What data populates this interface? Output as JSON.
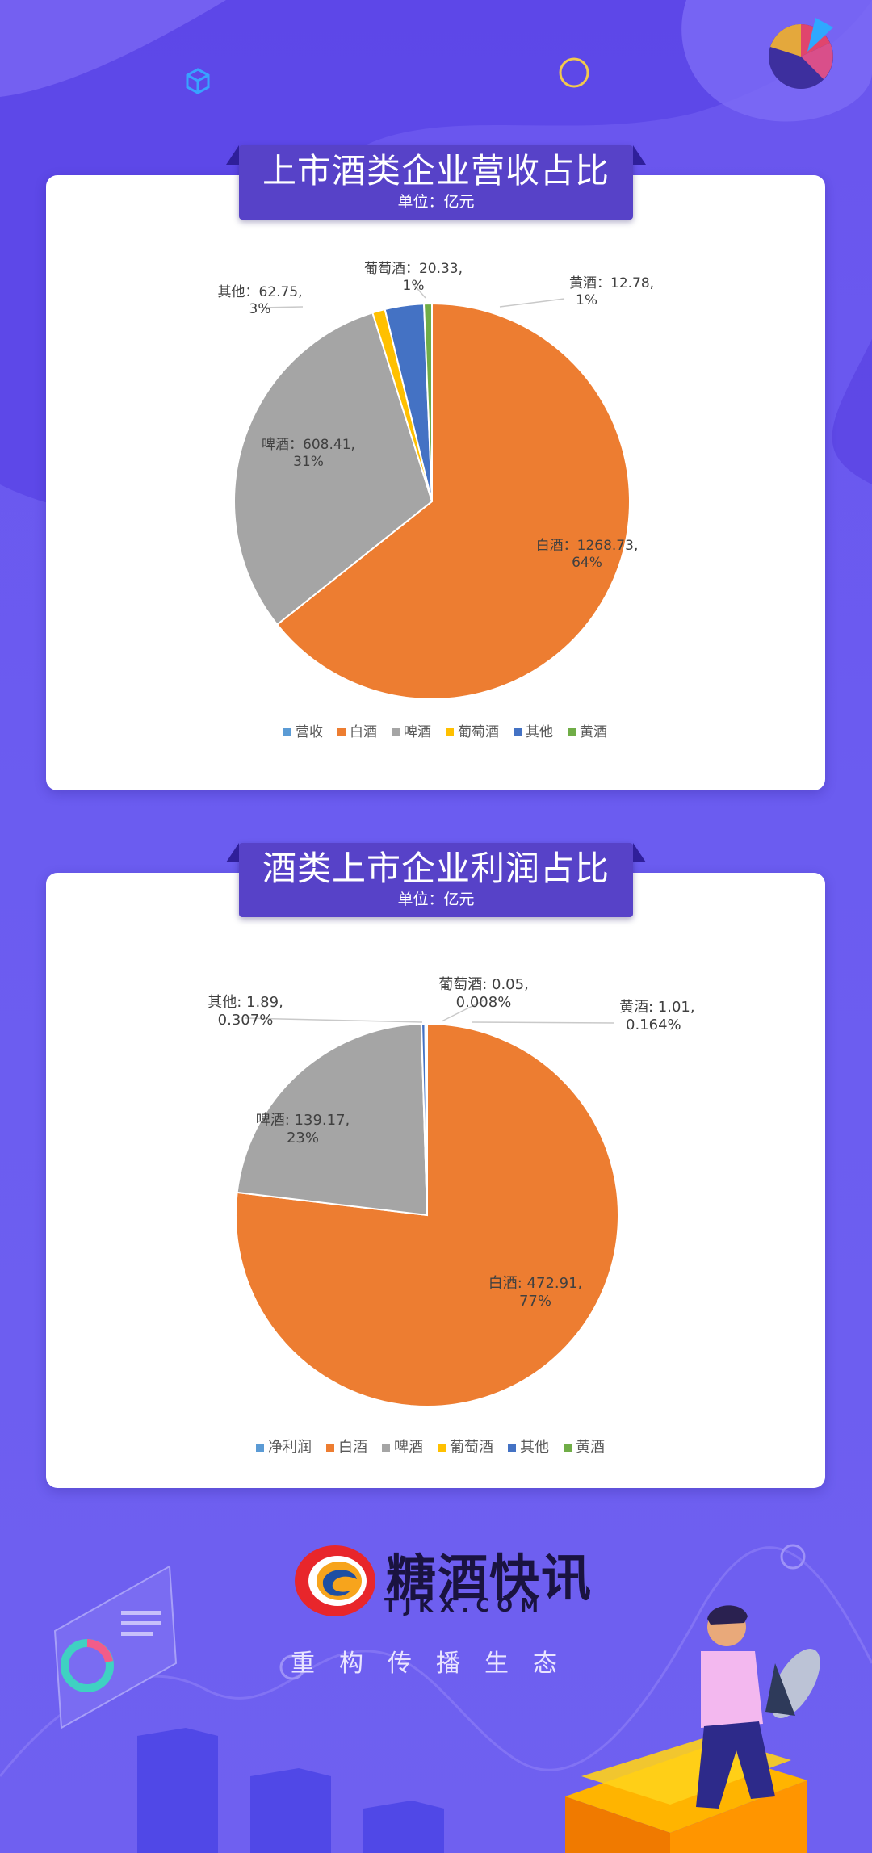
{
  "chart_data": [
    {
      "type": "pie",
      "title": "上市酒类企业营收占比",
      "subtitle": "单位：亿元",
      "legend": [
        "营收",
        "白酒",
        "啤酒",
        "葡萄酒",
        "其他",
        "黄酒"
      ],
      "legend_colors": [
        "#5b9bd5",
        "#ed7d31",
        "#a5a5a5",
        "#ffc000",
        "#4472c4",
        "#70ad47"
      ],
      "slices": [
        {
          "name": "白酒",
          "value": 1268.73,
          "percent": "64%",
          "color": "#ed7d31"
        },
        {
          "name": "啤酒",
          "value": 608.41,
          "percent": "31%",
          "color": "#a5a5a5"
        },
        {
          "name": "葡萄酒",
          "value": 20.33,
          "percent": "1%",
          "color": "#ffc000"
        },
        {
          "name": "其他",
          "value": 62.75,
          "percent": "3%",
          "color": "#4472c4"
        },
        {
          "name": "黄酒",
          "value": 12.78,
          "percent": "1%",
          "color": "#70ad47"
        }
      ],
      "legend_position": "bottom"
    },
    {
      "type": "pie",
      "title": "酒类上市企业利润占比",
      "subtitle": "单位：亿元",
      "legend": [
        "净利润",
        "白酒",
        "啤酒",
        "葡萄酒",
        "其他",
        "黄酒"
      ],
      "legend_colors": [
        "#5b9bd5",
        "#ed7d31",
        "#a5a5a5",
        "#ffc000",
        "#4472c4",
        "#70ad47"
      ],
      "slices": [
        {
          "name": "白酒",
          "value": 472.91,
          "percent": "77%",
          "color": "#ed7d31"
        },
        {
          "name": "啤酒",
          "value": 139.17,
          "percent": "23%",
          "color": "#a5a5a5"
        },
        {
          "name": "葡萄酒",
          "value": 0.05,
          "percent": "0.008%",
          "color": "#ffc000"
        },
        {
          "name": "其他",
          "value": 1.89,
          "percent": "0.307%",
          "color": "#4472c4"
        },
        {
          "name": "黄酒",
          "value": 1.01,
          "percent": "0.164%",
          "color": "#70ad47"
        }
      ],
      "legend_position": "bottom"
    }
  ],
  "labels": {
    "chart1": [
      {
        "line1": "白酒：1268.73,",
        "line2": "64%"
      },
      {
        "line1": "啤酒：608.41,",
        "line2": "31%"
      },
      {
        "line1": "葡萄酒：20.33,",
        "line2": "1%"
      },
      {
        "line1": "其他：62.75,",
        "line2": "3%"
      },
      {
        "line1": "黄酒：12.78,",
        "line2": "1%"
      }
    ],
    "chart2": [
      {
        "line1": "白酒: 472.91,",
        "line2": "77%"
      },
      {
        "line1": "啤酒: 139.17,",
        "line2": "23%"
      },
      {
        "line1": "葡萄酒: 0.05,",
        "line2": "0.008%"
      },
      {
        "line1": "其他: 1.89,",
        "line2": "0.307%"
      },
      {
        "line1": "黄酒: 1.01,",
        "line2": "0.164%"
      }
    ]
  },
  "brand": {
    "name": "糖酒快讯",
    "domain": "TJKX.COM",
    "slogan": "重构传播生态"
  }
}
